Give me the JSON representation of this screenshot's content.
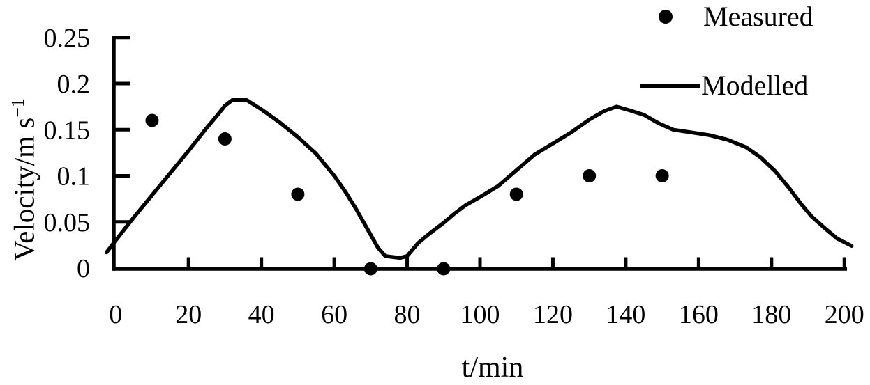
{
  "chart_data": {
    "type": "line",
    "title": "",
    "xlabel": "t/min",
    "ylabel": "Velocity/m s⁻¹",
    "ylabel_main": "Velocity/m s",
    "ylabel_sup": "−1",
    "xlim": [
      0,
      200
    ],
    "ylim": [
      0,
      0.25
    ],
    "grid": false,
    "legend_position": "top-right",
    "legend": {
      "measured": "Measured",
      "modelled": "Modelled"
    },
    "colors": {
      "ink": "#000000",
      "background": "#ffffff"
    },
    "x_ticks": [
      {
        "value": 0,
        "label": "0"
      },
      {
        "value": 20,
        "label": "20"
      },
      {
        "value": 40,
        "label": "40"
      },
      {
        "value": 60,
        "label": "60"
      },
      {
        "value": 80,
        "label": "80"
      },
      {
        "value": 100,
        "label": "100"
      },
      {
        "value": 120,
        "label": "120"
      },
      {
        "value": 140,
        "label": "140"
      },
      {
        "value": 160,
        "label": "160"
      },
      {
        "value": 180,
        "label": "180"
      },
      {
        "value": 200,
        "label": "200"
      }
    ],
    "y_ticks": [
      {
        "value": 0,
        "label": "0"
      },
      {
        "value": 0.05,
        "label": "0.05"
      },
      {
        "value": 0.1,
        "label": "0.1"
      },
      {
        "value": 0.15,
        "label": "0.15"
      },
      {
        "value": 0.2,
        "label": "0.2"
      },
      {
        "value": 0.25,
        "label": "0.25"
      }
    ],
    "series": [
      {
        "name": "Measured",
        "type": "scatter",
        "points": [
          [
            10,
            0.16
          ],
          [
            30,
            0.14
          ],
          [
            50,
            0.08
          ],
          [
            70,
            0
          ],
          [
            90,
            0
          ],
          [
            110,
            0.08
          ],
          [
            130,
            0.1
          ],
          [
            150,
            0.1
          ]
        ]
      },
      {
        "name": "Modelled",
        "type": "line",
        "points": [
          [
            -2.5,
            0.017
          ],
          [
            0,
            0.03
          ],
          [
            5,
            0.055
          ],
          [
            10,
            0.079
          ],
          [
            15,
            0.103
          ],
          [
            20,
            0.127
          ],
          [
            25,
            0.152
          ],
          [
            28,
            0.166
          ],
          [
            30,
            0.176
          ],
          [
            32,
            0.182
          ],
          [
            36,
            0.182
          ],
          [
            40,
            0.172
          ],
          [
            45,
            0.158
          ],
          [
            50,
            0.142
          ],
          [
            55,
            0.124
          ],
          [
            60,
            0.1
          ],
          [
            63,
            0.083
          ],
          [
            66,
            0.064
          ],
          [
            69,
            0.043
          ],
          [
            72,
            0.022
          ],
          [
            74,
            0.013
          ],
          [
            78,
            0.011
          ],
          [
            80,
            0.013
          ],
          [
            83,
            0.027
          ],
          [
            86,
            0.037
          ],
          [
            90,
            0.049
          ],
          [
            93,
            0.059
          ],
          [
            96,
            0.068
          ],
          [
            100,
            0.077
          ],
          [
            105,
            0.089
          ],
          [
            110,
            0.106
          ],
          [
            115,
            0.123
          ],
          [
            120,
            0.135
          ],
          [
            125,
            0.147
          ],
          [
            130,
            0.161
          ],
          [
            134,
            0.17
          ],
          [
            137.5,
            0.175
          ],
          [
            141,
            0.171
          ],
          [
            145,
            0.166
          ],
          [
            149,
            0.157
          ],
          [
            153,
            0.15
          ],
          [
            158,
            0.147
          ],
          [
            163,
            0.144
          ],
          [
            168,
            0.139
          ],
          [
            173,
            0.131
          ],
          [
            177,
            0.12
          ],
          [
            181,
            0.105
          ],
          [
            185,
            0.086
          ],
          [
            188,
            0.07
          ],
          [
            191,
            0.056
          ],
          [
            195,
            0.042
          ],
          [
            198,
            0.032
          ],
          [
            202,
            0.024
          ]
        ]
      }
    ]
  }
}
